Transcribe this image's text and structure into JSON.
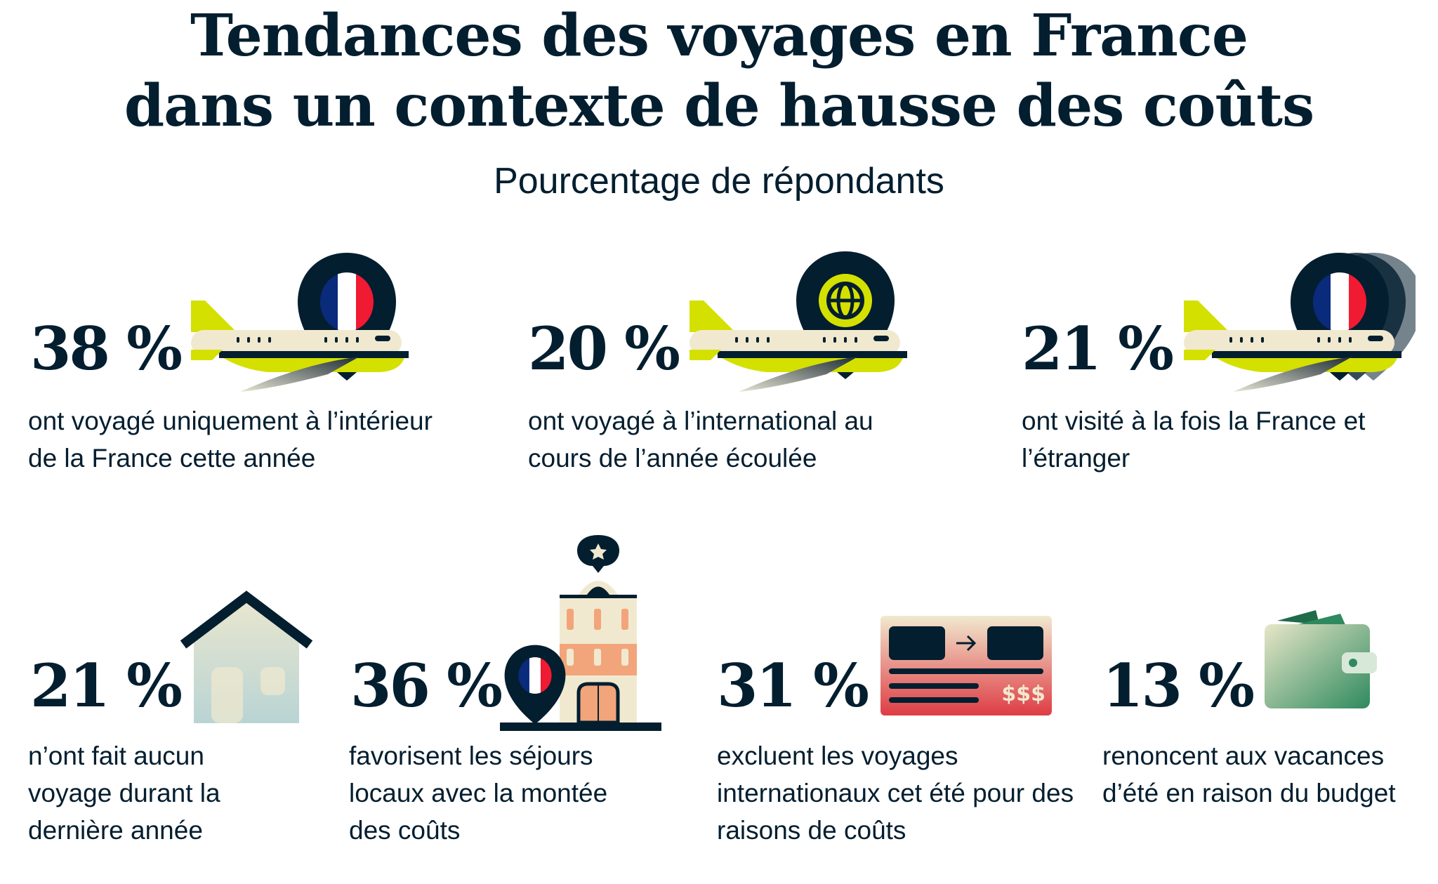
{
  "header": {
    "title_line1": "Tendances des voyages en France",
    "title_line2": "dans un contexte de hausse des coûts",
    "subtitle": "Pourcentage de répondants"
  },
  "stats": [
    {
      "value": "38 %",
      "text": "ont voyagé uniquement à l’intérieur de la France cette année",
      "icon": "plane-france-pin-icon"
    },
    {
      "value": "20 %",
      "text": "ont voyagé à l’international au cours de l’année écoulée",
      "icon": "plane-globe-pin-icon"
    },
    {
      "value": "21 %",
      "text": "ont visité à la fois la France et l’étranger",
      "icon": "plane-multi-pin-icon"
    },
    {
      "value": "21 %",
      "text": "n’ont fait aucun voyage durant la dernière année",
      "icon": "house-icon"
    },
    {
      "value": "36 %",
      "text": "favorisent les séjours locaux avec la montée des coûts",
      "icon": "hotel-france-pin-icon"
    },
    {
      "value": "31 %",
      "text": "excluent les voyages internationaux cet été pour des raisons de coûts",
      "icon": "ticket-cost-icon",
      "icon_text": "$$$"
    },
    {
      "value": "13 %",
      "text": "renoncent aux vacances d’été en raison du budget",
      "icon": "wallet-icon"
    }
  ],
  "colors": {
    "dark": "#031e2f",
    "lime": "#d4e000",
    "cream": "#f1e9cf",
    "flag_blue": "#0a2a7c",
    "flag_red": "#f01a32",
    "orange": "#f2a57a",
    "red": "#de4048",
    "green": "#2e8a5e"
  }
}
